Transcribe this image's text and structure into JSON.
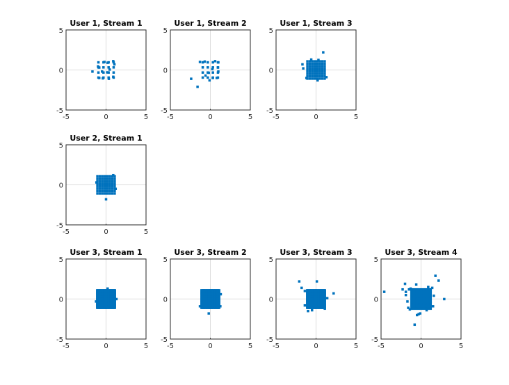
{
  "chart_data": [
    {
      "type": "scatter",
      "title": "User 1, Stream 1",
      "row": 1,
      "col": 1,
      "xlim": [
        -5,
        5
      ],
      "ylim": [
        -5,
        5
      ],
      "xticks": [
        "-5",
        "0",
        "5"
      ],
      "yticks": [
        "5",
        "0",
        "-5"
      ],
      "grid": true,
      "color": "#0072BD",
      "grid_levels": [
        -0.95,
        -0.32,
        0.32,
        0.95
      ],
      "points": [
        [
          -0.85,
          -1.0
        ],
        [
          -0.4,
          -1.05
        ],
        [
          0.35,
          -1.1
        ],
        [
          0.9,
          -0.85
        ],
        [
          -1.0,
          0.45
        ],
        [
          -0.85,
          0.3
        ],
        [
          0.2,
          0.9
        ],
        [
          1.05,
          0.7
        ],
        [
          0.9,
          1.1
        ],
        [
          -0.2,
          1.0
        ],
        [
          0.45,
          0.05
        ],
        [
          -0.5,
          -0.2
        ],
        [
          -1.7,
          -0.2
        ],
        [
          0.15,
          -0.3
        ]
      ]
    },
    {
      "type": "scatter",
      "title": "User 1, Stream 2",
      "row": 1,
      "col": 2,
      "xlim": [
        -5,
        5
      ],
      "ylim": [
        -5,
        5
      ],
      "xticks": [
        "-5",
        "0",
        "5"
      ],
      "yticks": [
        "5",
        "0",
        "-5"
      ],
      "grid": true,
      "color": "#0072BD",
      "grid_levels": [
        -0.95,
        -0.32,
        0.32,
        0.95
      ],
      "points": [
        [
          -1.3,
          1.0
        ],
        [
          -0.7,
          1.05
        ],
        [
          0.6,
          1.1
        ],
        [
          1.0,
          0.95
        ],
        [
          0.95,
          0.3
        ],
        [
          1.0,
          -0.2
        ],
        [
          0.3,
          -1.0
        ],
        [
          -0.6,
          -0.7
        ],
        [
          -0.1,
          -1.3
        ],
        [
          0.8,
          -1.0
        ],
        [
          -2.4,
          -1.1
        ],
        [
          -1.6,
          -2.1
        ],
        [
          0.25,
          0.1
        ],
        [
          -0.2,
          -0.35
        ]
      ]
    },
    {
      "type": "scatter",
      "title": "User 1, Stream 3",
      "row": 1,
      "col": 3,
      "xlim": [
        -5,
        5
      ],
      "ylim": [
        -5,
        5
      ],
      "xticks": [
        "-5",
        "0",
        "5"
      ],
      "yticks": [
        "5",
        "0",
        "-5"
      ],
      "grid": true,
      "color": "#0072BD",
      "grid_levels": [
        -1.08,
        -0.77,
        -0.46,
        -0.15,
        0.15,
        0.46,
        0.77,
        1.08
      ],
      "points": [
        [
          -1.7,
          0.7
        ],
        [
          -1.6,
          0.2
        ],
        [
          0.9,
          2.2
        ],
        [
          1.3,
          -0.9
        ],
        [
          -1.2,
          -1.0
        ],
        [
          0.2,
          -1.3
        ],
        [
          -0.6,
          1.3
        ],
        [
          0.3,
          1.25
        ]
      ]
    },
    {
      "type": "scatter",
      "title": "User 2, Stream 1",
      "row": 2,
      "col": 1,
      "xlim": [
        -5,
        5
      ],
      "ylim": [
        -5,
        5
      ],
      "xticks": [
        "-5",
        "0",
        "5"
      ],
      "yticks": [
        "5",
        "0",
        "-5"
      ],
      "grid": true,
      "color": "#0072BD",
      "grid_levels": [
        -1.08,
        -0.77,
        -0.46,
        -0.15,
        0.15,
        0.46,
        0.77,
        1.08
      ],
      "points": [
        [
          0.0,
          -1.8
        ],
        [
          -1.2,
          0.3
        ],
        [
          1.2,
          -0.5
        ],
        [
          0.9,
          1.2
        ]
      ]
    },
    {
      "type": "scatter",
      "title": "User 3, Stream 1",
      "row": 3,
      "col": 1,
      "xlim": [
        -5,
        5
      ],
      "ylim": [
        -5,
        5
      ],
      "xticks": [
        "-5",
        "0",
        "5"
      ],
      "yticks": [
        "5",
        "0",
        "-5"
      ],
      "grid": true,
      "color": "#0072BD",
      "grid_levels": [
        -1.1,
        -0.94,
        -0.79,
        -0.63,
        -0.47,
        -0.31,
        -0.16,
        0,
        0.16,
        0.31,
        0.47,
        0.63,
        0.79,
        0.94,
        1.1
      ],
      "points": [
        [
          1.3,
          0.0
        ],
        [
          -1.25,
          -0.3
        ],
        [
          0.2,
          1.3
        ]
      ]
    },
    {
      "type": "scatter",
      "title": "User 3, Stream 2",
      "row": 3,
      "col": 2,
      "xlim": [
        -5,
        5
      ],
      "ylim": [
        -5,
        5
      ],
      "xticks": [
        "-5",
        "0",
        "5"
      ],
      "yticks": [
        "5",
        "0",
        "-5"
      ],
      "grid": true,
      "color": "#0072BD",
      "grid_levels": [
        -1.1,
        -0.94,
        -0.79,
        -0.63,
        -0.47,
        -0.31,
        -0.16,
        0,
        0.16,
        0.31,
        0.47,
        0.63,
        0.79,
        0.94,
        1.1
      ],
      "points": [
        [
          -0.2,
          -1.8
        ],
        [
          1.3,
          0.6
        ],
        [
          -1.3,
          -0.9
        ],
        [
          1.25,
          -0.9
        ]
      ]
    },
    {
      "type": "scatter",
      "title": "User 3, Stream 3",
      "row": 3,
      "col": 3,
      "xlim": [
        -5,
        5
      ],
      "ylim": [
        -5,
        5
      ],
      "xticks": [
        "-5",
        "0",
        "5"
      ],
      "yticks": [
        "5",
        "0",
        "-5"
      ],
      "grid": true,
      "color": "#0072BD",
      "grid_levels": [
        -1.1,
        -0.94,
        -0.79,
        -0.63,
        -0.47,
        -0.31,
        -0.16,
        0,
        0.16,
        0.31,
        0.47,
        0.63,
        0.79,
        0.94,
        1.1
      ],
      "points": [
        [
          -2.1,
          2.2
        ],
        [
          0.1,
          2.2
        ],
        [
          -1.8,
          1.4
        ],
        [
          2.2,
          0.7
        ],
        [
          -1.4,
          1.0
        ],
        [
          1.4,
          0.1
        ],
        [
          -1.0,
          -1.5
        ],
        [
          -0.5,
          -1.4
        ],
        [
          1.1,
          -1.2
        ],
        [
          -1.4,
          -0.8
        ]
      ]
    },
    {
      "type": "scatter",
      "title": "User 3, Stream 4",
      "row": 3,
      "col": 4,
      "xlim": [
        -5,
        5
      ],
      "ylim": [
        -5,
        5
      ],
      "xticks": [
        "-5",
        "0",
        "5"
      ],
      "yticks": [
        "5",
        "0",
        "-5"
      ],
      "grid": true,
      "color": "#0072BD",
      "grid_levels": [
        -1.2,
        -1.03,
        -0.86,
        -0.69,
        -0.51,
        -0.34,
        -0.17,
        0,
        0.17,
        0.34,
        0.51,
        0.69,
        0.86,
        1.03,
        1.2
      ],
      "points": [
        [
          -4.6,
          0.9
        ],
        [
          1.8,
          2.9
        ],
        [
          2.2,
          2.3
        ],
        [
          -2.0,
          1.9
        ],
        [
          -1.5,
          1.2
        ],
        [
          -0.6,
          1.8
        ],
        [
          -2.3,
          1.2
        ],
        [
          -1.9,
          0.9
        ],
        [
          -1.9,
          0.5
        ],
        [
          -1.7,
          -0.3
        ],
        [
          -1.6,
          -1.1
        ],
        [
          1.6,
          0.4
        ],
        [
          1.4,
          1.4
        ],
        [
          0.9,
          1.5
        ],
        [
          2.9,
          0.0
        ],
        [
          -0.3,
          -1.9
        ],
        [
          -0.5,
          -2.0
        ],
        [
          -0.8,
          -3.2
        ],
        [
          -0.1,
          -1.8
        ],
        [
          0.7,
          -1.4
        ],
        [
          1.5,
          -0.9
        ],
        [
          -1.3,
          1.3
        ],
        [
          -1.4,
          -1.3
        ]
      ]
    }
  ]
}
